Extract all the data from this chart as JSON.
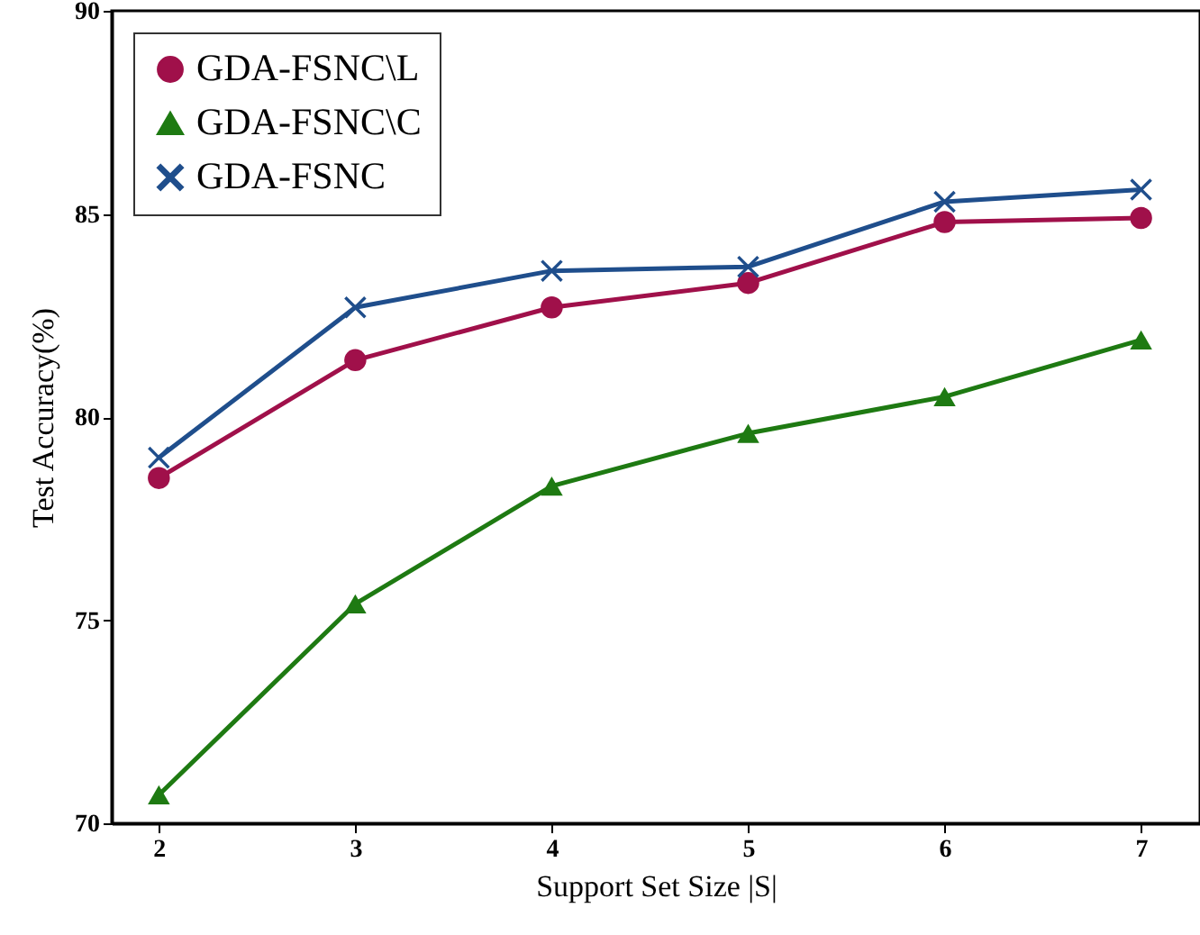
{
  "chart_data": {
    "type": "line",
    "xlabel": "Support Set Size |S|",
    "ylabel": "Test Accuracy(%)",
    "x": [
      2,
      3,
      4,
      5,
      6,
      7
    ],
    "xlim": [
      1.76,
      7.3
    ],
    "xticks": [
      2,
      3,
      4,
      5,
      6,
      7
    ],
    "ylim": [
      70,
      90
    ],
    "yticks": [
      70,
      75,
      80,
      85,
      90
    ],
    "grid": false,
    "legend": "top left",
    "line_style": "solid",
    "series": [
      {
        "name": "GDA-FSNC\\L",
        "color": "#a0104a",
        "marker": "circle",
        "values": [
          78.5,
          81.4,
          82.7,
          83.3,
          84.8,
          84.9
        ]
      },
      {
        "name": "GDA-FSNC\\C",
        "color": "#1e7a12",
        "marker": "triangle",
        "values": [
          70.7,
          75.4,
          78.3,
          79.6,
          80.5,
          81.9
        ]
      },
      {
        "name": "GDA-FSNC",
        "color": "#1f4e8c",
        "marker": "cross",
        "values": [
          79.0,
          82.7,
          83.6,
          83.7,
          85.3,
          85.6
        ]
      }
    ]
  }
}
